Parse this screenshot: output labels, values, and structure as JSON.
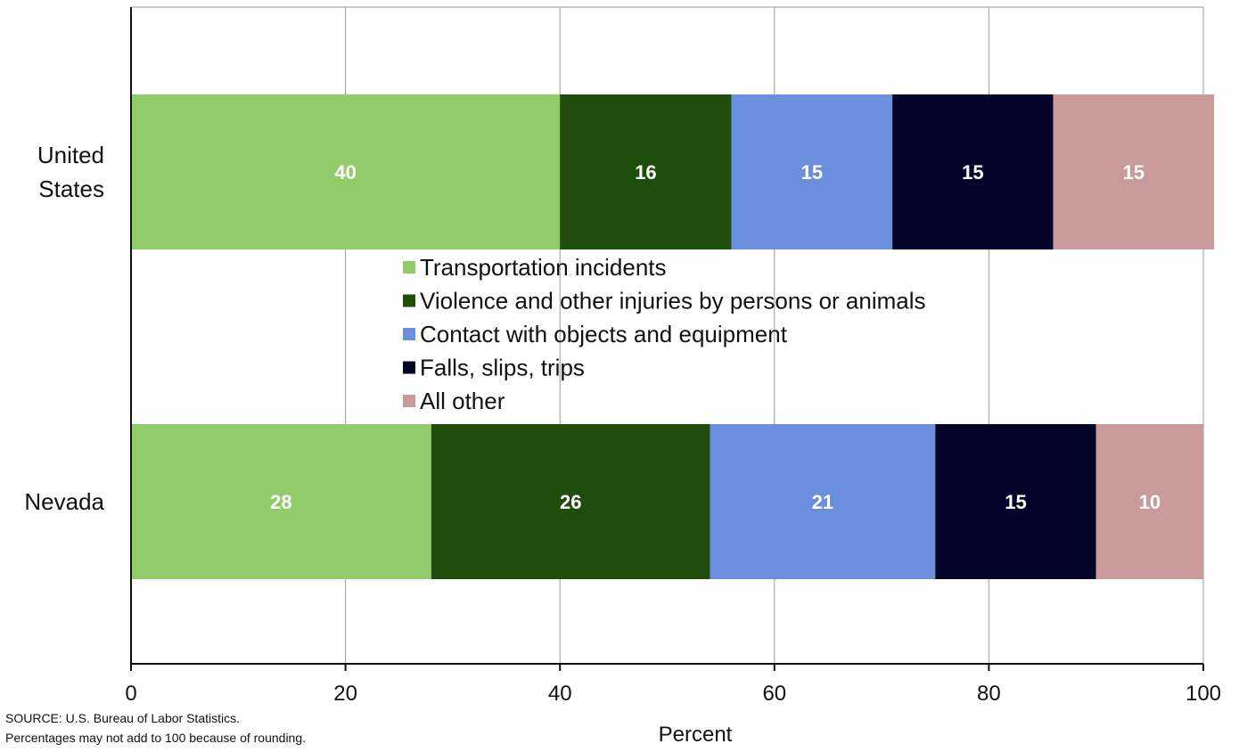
{
  "chart_data": {
    "type": "bar",
    "orientation": "horizontal",
    "stacked": true,
    "categories": [
      "United States",
      "Nevada"
    ],
    "category_label_lines": [
      [
        "United",
        "States"
      ],
      [
        "Nevada"
      ]
    ],
    "series": [
      {
        "name": "Transportation incidents",
        "values": [
          40,
          28
        ],
        "color": "#92cc6a",
        "label_color": "#ffffff"
      },
      {
        "name": "Violence and other injuries by persons or animals",
        "values": [
          16,
          26
        ],
        "color": "#1e4d0c",
        "label_color": "#ffffff"
      },
      {
        "name": "Contact with objects and equipment",
        "values": [
          15,
          21
        ],
        "color": "#6b8fdc",
        "label_color": "#ffffff"
      },
      {
        "name": "Falls, slips, trips",
        "values": [
          15,
          15
        ],
        "color": "#04042a",
        "label_color": "#ffffff"
      },
      {
        "name": "All other",
        "values": [
          15,
          10
        ],
        "color": "#c99a9a",
        "label_color": "#ffffff"
      }
    ],
    "x_ticks": [
      "0",
      "20",
      "40",
      "60",
      "80",
      "100"
    ],
    "xlim": [
      0,
      100
    ],
    "xlabel": "Percent",
    "ylabel": "",
    "title": "",
    "grid": "vertical",
    "legend_position": "center"
  },
  "notes": {
    "source": "SOURCE: U.S. Bureau  of Labor Statistics.",
    "rounding": "Percentages may not add to 100  because of rounding."
  }
}
